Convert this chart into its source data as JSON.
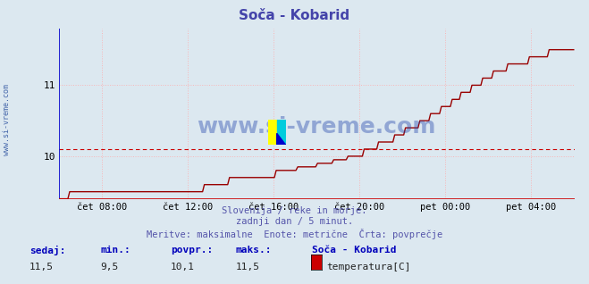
{
  "title": "Soča - Kobarid",
  "title_color": "#4444aa",
  "bg_color": "#dce8f0",
  "plot_bg_color": "#dce8f0",
  "grid_color": "#ffaaaa",
  "line_color": "#990000",
  "avg_line_color": "#cc0000",
  "avg_value": 10.1,
  "y_min": 9.4,
  "y_max": 11.8,
  "y_ticks": [
    10,
    11
  ],
  "x_tick_labels": [
    "čet 08:00",
    "čet 12:00",
    "čet 16:00",
    "čet 20:00",
    "pet 00:00",
    "pet 04:00"
  ],
  "text_line1": "Slovenija / reke in morje.",
  "text_line2": "zadnji dan / 5 minut.",
  "text_line3": "Meritve: maksimalne  Enote: metrične  Črta: povprečje",
  "text_color": "#5555aa",
  "footer_label_color": "#0000bb",
  "sedaj_label": "sedaj:",
  "min_label": "min.:",
  "povpr_label": "povpr.:",
  "maks_label": "maks.:",
  "sedaj_val": "11,5",
  "min_val": "9,5",
  "povpr_val": "10,1",
  "maks_val": "11,5",
  "station_name": "Soča - Kobarid",
  "legend_label": "temperatura[C]",
  "legend_color": "#cc0000",
  "watermark": "www.si-vreme.com",
  "watermark_color": "#2244aa",
  "left_label": "www.si-vreme.com",
  "left_label_color": "#4466aa",
  "axis_color_v": "#0000cc",
  "axis_color_h": "#cc0000",
  "arrow_color": "#cc0000"
}
